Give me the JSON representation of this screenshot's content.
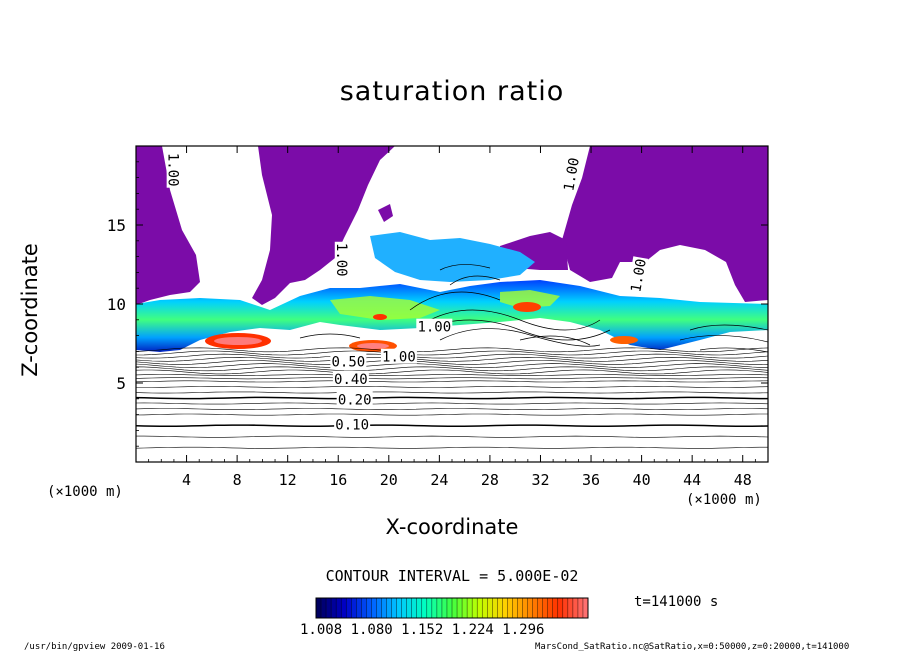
{
  "chart_data": {
    "type": "contour",
    "title": "saturation ratio",
    "xlabel": "X-coordinate",
    "ylabel": "Z-coordinate",
    "x_unit": "(×1000 m)",
    "xlim": [
      0,
      50
    ],
    "ylim": [
      0,
      20
    ],
    "x_ticks": [
      4,
      8,
      12,
      16,
      20,
      24,
      28,
      32,
      36,
      40,
      44,
      48
    ],
    "y_ticks": [
      5,
      10,
      15
    ],
    "contour_labels": [
      {
        "text": "1.00",
        "x": 2.9,
        "z": 18.5,
        "rotate": 90
      },
      {
        "text": "1.00",
        "x": 16.2,
        "z": 12.8,
        "rotate": 90
      },
      {
        "text": "1.00",
        "x": 34.5,
        "z": 18.2,
        "rotate": -80
      },
      {
        "text": "1.00",
        "x": 39.8,
        "z": 11.8,
        "rotate": -80
      },
      {
        "text": "1.00",
        "x": 23.6,
        "z": 8.5,
        "rotate": 0
      },
      {
        "text": "1.00",
        "x": 20.8,
        "z": 6.6,
        "rotate": 0
      },
      {
        "text": "0.50",
        "x": 16.8,
        "z": 6.3,
        "rotate": 0
      },
      {
        "text": "0.40",
        "x": 17.0,
        "z": 5.2,
        "rotate": 0
      },
      {
        "text": "0.20",
        "x": 17.3,
        "z": 3.9,
        "rotate": 0
      },
      {
        "text": "0.10",
        "x": 17.1,
        "z": 2.3,
        "rotate": 0
      }
    ],
    "contour_interval_text": "CONTOUR INTERVAL = 5.000E-02",
    "colorbar": {
      "tick_labels": [
        "1.008",
        "1.080",
        "1.152",
        "1.224",
        "1.296"
      ],
      "colors": [
        "#000060",
        "#0000c8",
        "#0060ff",
        "#00c8ff",
        "#00ffc0",
        "#40ff40",
        "#c0ff00",
        "#ffd000",
        "#ff8000",
        "#ff3000",
        "#ff7070"
      ]
    },
    "time_text": "t=141000 s",
    "fill_colors": {
      "over_1": "#7b0ca8"
    }
  },
  "footer": {
    "left": "/usr/bin/gpview  2009-01-16",
    "right": "MarsCond_SatRatio.nc@SatRatio,x=0:50000,z=0:20000,t=141000"
  }
}
